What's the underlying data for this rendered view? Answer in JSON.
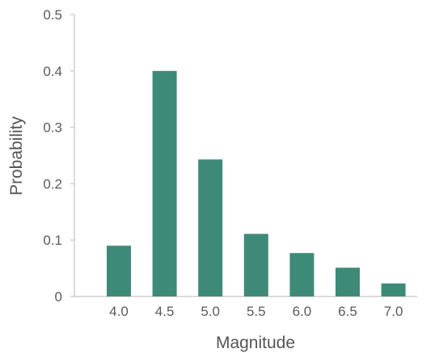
{
  "chart_data": {
    "type": "bar",
    "categories": [
      "4.0",
      "4.5",
      "5.0",
      "5.5",
      "6.0",
      "6.5",
      "7.0"
    ],
    "values": [
      0.09,
      0.4,
      0.243,
      0.111,
      0.077,
      0.051,
      0.023
    ],
    "xlabel": "Magnitude",
    "ylabel": "Probability",
    "ylim": [
      0,
      0.5
    ],
    "yticks": [
      "0",
      "0.1",
      "0.2",
      "0.3",
      "0.4",
      "0.5"
    ],
    "grid": false,
    "legend": "none",
    "colors": {
      "bar": "#3e8a78",
      "axis": "#cfcfcf",
      "text": "#5a5a5a"
    }
  }
}
